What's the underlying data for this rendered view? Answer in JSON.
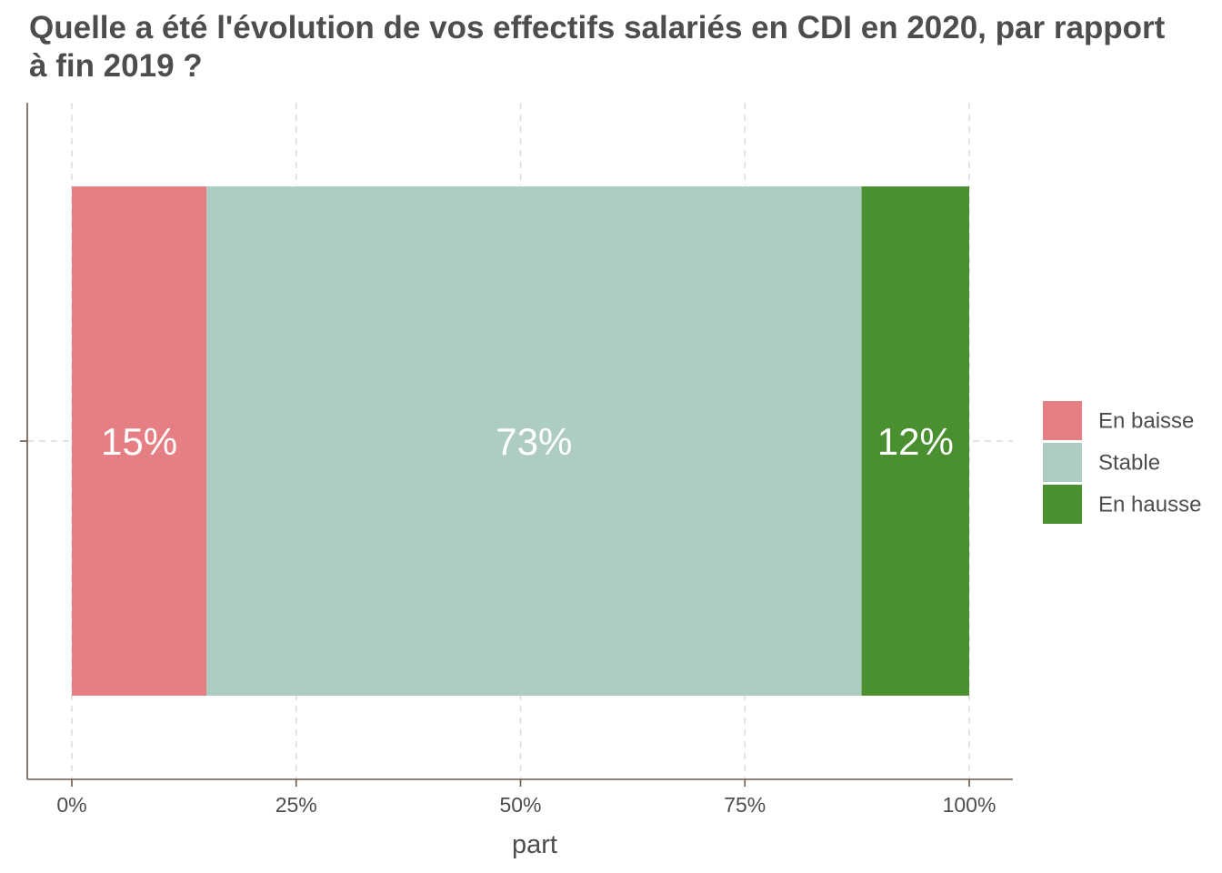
{
  "chart_data": {
    "type": "bar",
    "orientation": "horizontal",
    "stacked": true,
    "title": "Quelle a été l'évolution de vos effectifs salariés en CDI en 2020, par rapport à fin 2019 ?",
    "xlabel": "part",
    "ylabel": "",
    "xlim": [
      0,
      100
    ],
    "x_ticks": [
      0,
      25,
      50,
      75,
      100
    ],
    "x_tick_labels": [
      "0%",
      "25%",
      "50%",
      "75%",
      "100%"
    ],
    "grid": true,
    "legend_position": "right",
    "series": [
      {
        "name": "En baisse",
        "value": 15,
        "label": "15%",
        "color": "#e67f83"
      },
      {
        "name": "Stable",
        "value": 73,
        "label": "73%",
        "color": "#aecdc2"
      },
      {
        "name": "En hausse",
        "value": 12,
        "label": "12%",
        "color": "#4a9031"
      }
    ]
  }
}
